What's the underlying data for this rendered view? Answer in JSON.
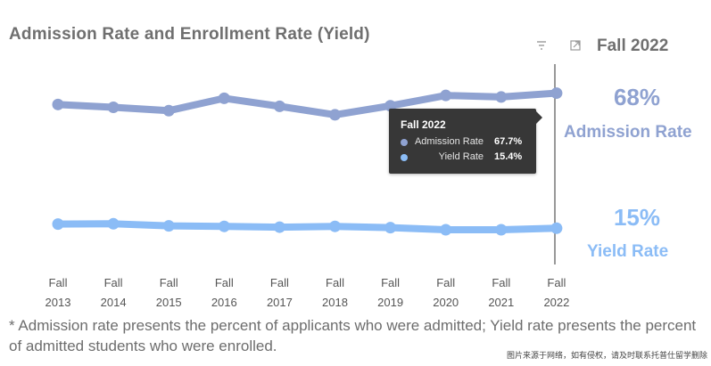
{
  "header": {
    "title": "Admission Rate and Enrollment Rate (Yield)",
    "selected_period": "Fall 2022"
  },
  "kpis": {
    "admission_value": "68%",
    "admission_label": "Admission Rate",
    "yield_value": "15%",
    "yield_label": "Yield Rate"
  },
  "tooltip": {
    "title": "Fall 2022",
    "rows": [
      {
        "label": "Admission Rate",
        "value": "67.7%"
      },
      {
        "label": "Yield Rate",
        "value": "15.4%"
      }
    ]
  },
  "footnote": "* Admission rate presents the percent of applicants who were admitted; Yield rate presents the percent of admitted students who were enrolled.",
  "watermark": "图片来源于网络，如有侵权，请及时联系托普仕留学删除",
  "colors": {
    "admission": "#8fa2d1",
    "yield": "#8bbcf6",
    "tooltip_bg": "#373737"
  },
  "icons": [
    "filter-icon",
    "focus-mode-icon"
  ],
  "chart_data": {
    "type": "line",
    "x": [
      "Fall 2013",
      "Fall 2014",
      "Fall 2015",
      "Fall 2016",
      "Fall 2017",
      "Fall 2018",
      "Fall 2019",
      "Fall 2020",
      "Fall 2021",
      "Fall 2022"
    ],
    "x_ticks": [
      [
        "Fall",
        "2013"
      ],
      [
        "Fall",
        "2014"
      ],
      [
        "Fall",
        "2015"
      ],
      [
        "Fall",
        "2016"
      ],
      [
        "Fall",
        "2017"
      ],
      [
        "Fall",
        "2018"
      ],
      [
        "Fall",
        "2019"
      ],
      [
        "Fall",
        "2020"
      ],
      [
        "Fall",
        "2021"
      ],
      [
        "Fall",
        "2022"
      ]
    ],
    "series": [
      {
        "name": "Admission Rate",
        "values": [
          63.3,
          62.2,
          60.9,
          65.7,
          62.6,
          59.3,
          62.8,
          66.8,
          66.2,
          67.7
        ]
      },
      {
        "name": "Yield Rate",
        "values": [
          17.0,
          17.1,
          16.3,
          16.1,
          15.8,
          16.1,
          15.6,
          14.8,
          14.8,
          15.4
        ]
      }
    ],
    "ylim": [
      0,
      75
    ],
    "grid": false,
    "y_axis_visible": false,
    "title": "Admission Rate and Enrollment Rate (Yield)",
    "xlabel": "",
    "ylabel": ""
  }
}
